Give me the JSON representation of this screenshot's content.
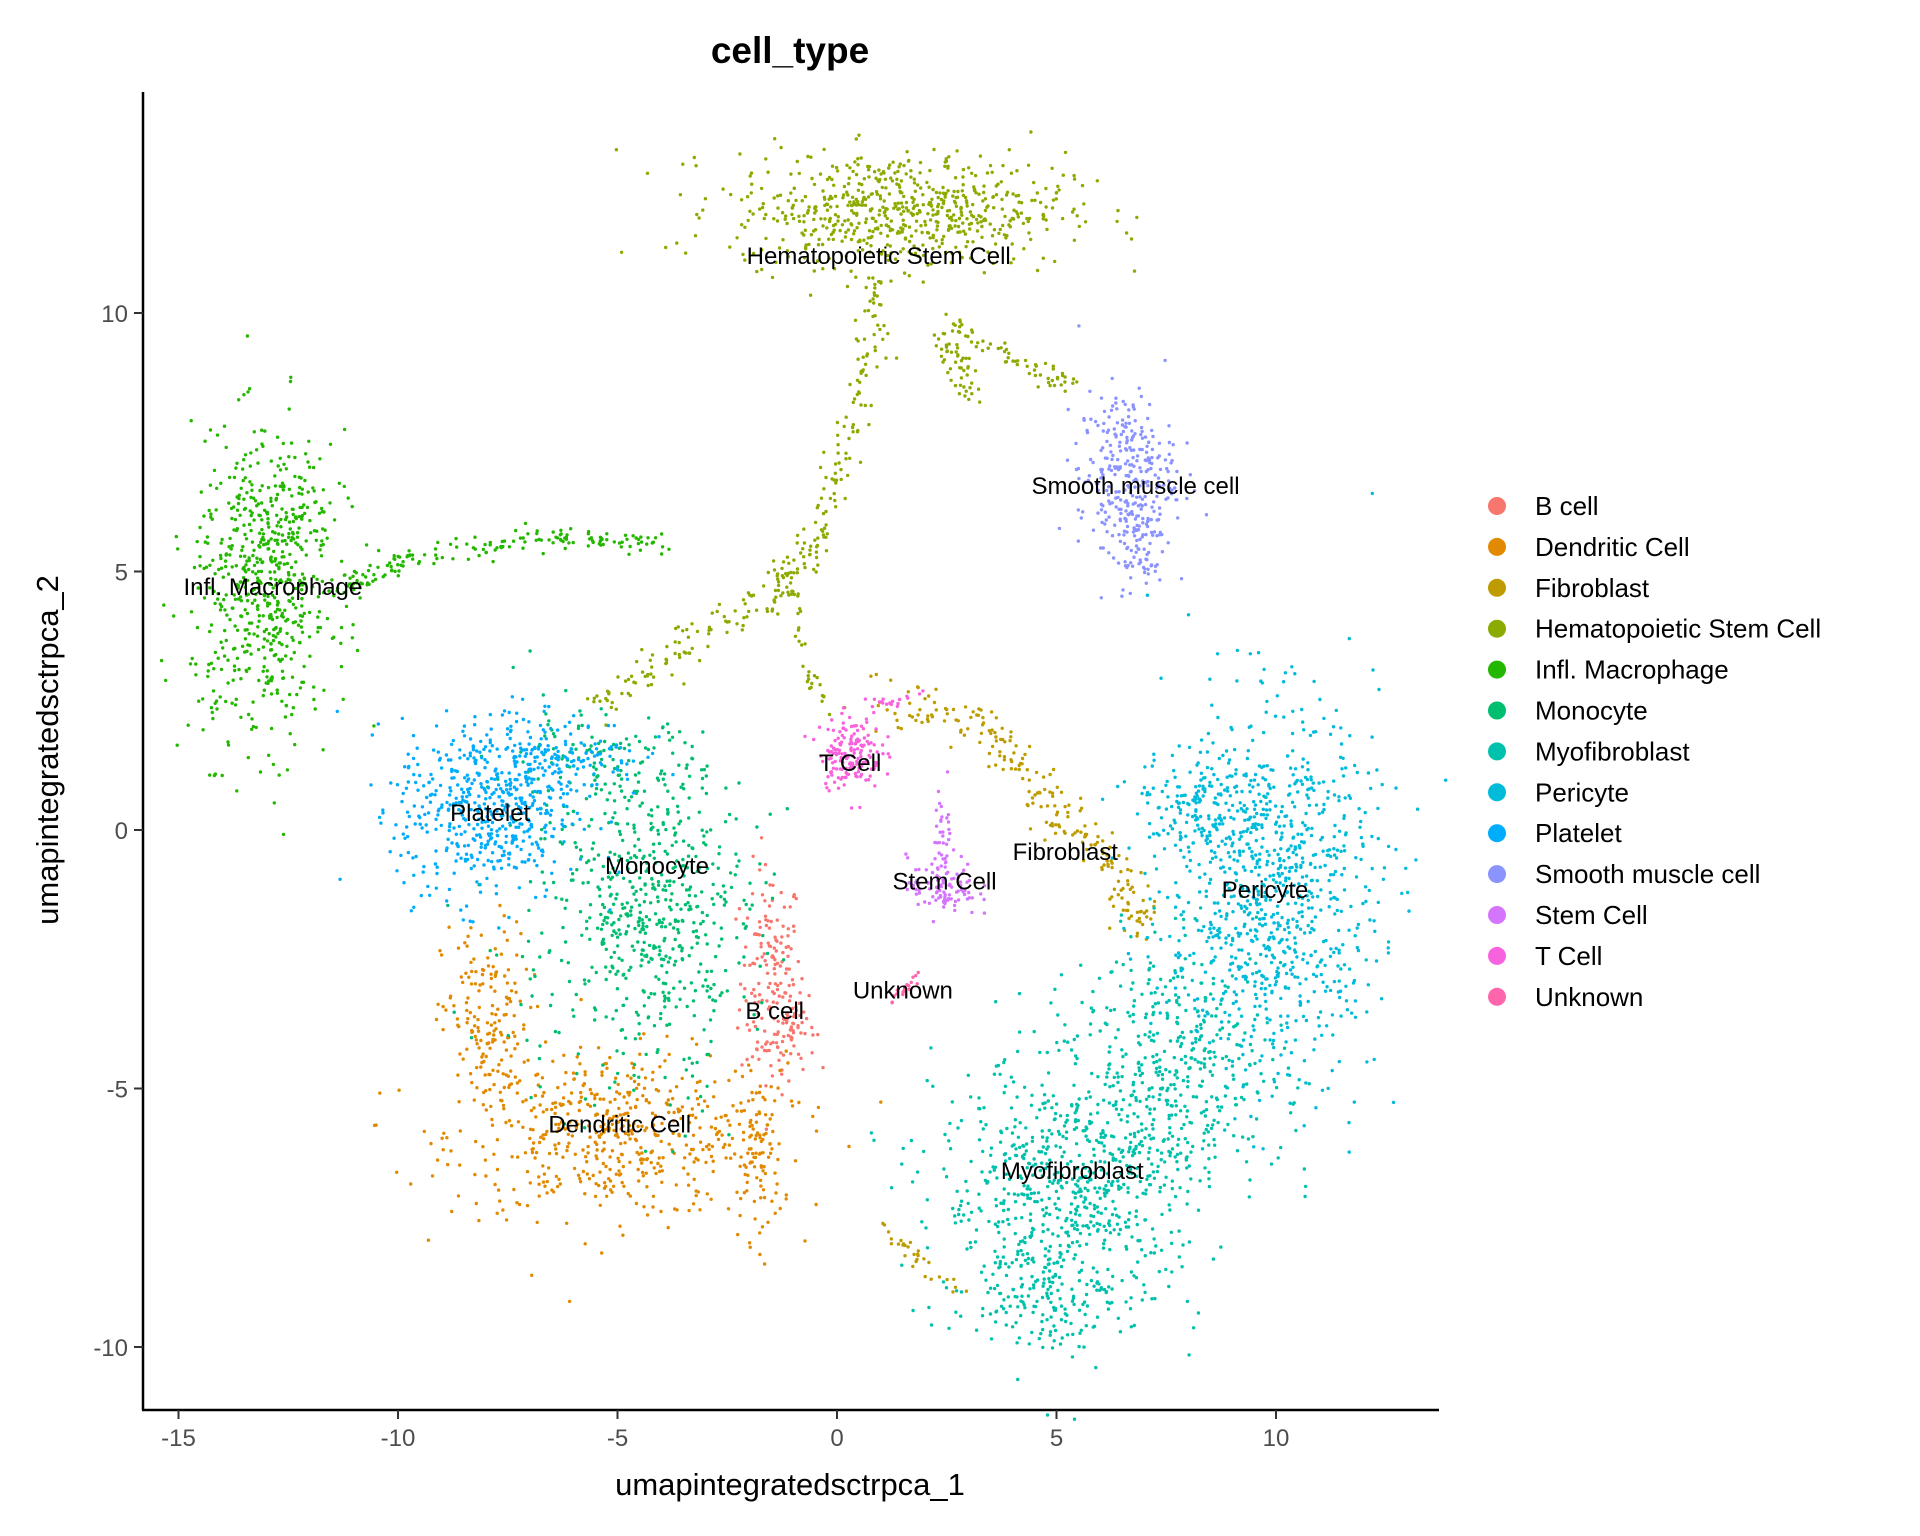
{
  "chart_data": {
    "type": "scatter",
    "title": "cell_type",
    "xlabel": "umapintegratedsctrpca_1",
    "ylabel": "umapintegratedsctrpca_2",
    "xlim": [
      -15.9,
      13.8
    ],
    "ylim": [
      -11.2,
      14.3
    ],
    "xticks": [
      -15,
      -10,
      -5,
      0,
      5,
      10
    ],
    "yticks": [
      -10,
      -5,
      0,
      5,
      10
    ],
    "grid": false,
    "legend_position": "right",
    "clusters": [
      {
        "name": "B cell",
        "color": "#F8766D",
        "label_pos": [
          -1.42,
          -3.5
        ],
        "components": [
          {
            "center": [
              -1.5,
              -2.9
            ],
            "sd": [
              0.35,
              1.1
            ],
            "n": 160
          },
          {
            "center": [
              -1.0,
              -3.8
            ],
            "sd": [
              0.25,
              0.4
            ],
            "n": 50
          }
        ]
      },
      {
        "name": "Dendritic Cell",
        "color": "#E18A00",
        "label_pos": [
          -4.95,
          -5.7
        ],
        "components": [
          {
            "center": [
              -5.0,
              -5.9
            ],
            "sd": [
              1.9,
              0.8
            ],
            "n": 520
          },
          {
            "center": [
              -8.0,
              -3.8
            ],
            "sd": [
              0.5,
              1.0
            ],
            "n": 170
          },
          {
            "center": [
              -1.8,
              -6.3
            ],
            "sd": [
              0.3,
              0.8
            ],
            "n": 90
          }
        ]
      },
      {
        "name": "Fibroblast",
        "color": "#BE9C00",
        "label_pos": [
          5.2,
          -0.43
        ],
        "components": [
          {
            "path": [
              [
                1.0,
                2.6
              ],
              [
                3.3,
                2.0
              ],
              [
                4.2,
                1.2
              ],
              [
                5.0,
                0.3
              ],
              [
                6.3,
                -0.7
              ],
              [
                7.0,
                -2.0
              ]
            ],
            "sd": 0.22,
            "n": 220
          },
          {
            "path": [
              [
                1.0,
                -7.7
              ],
              [
                2.8,
                -9.0
              ]
            ],
            "sd": 0.12,
            "n": 30
          }
        ]
      },
      {
        "name": "Hematopoietic Stem Cell",
        "color": "#8CAB00",
        "label_pos": [
          0.95,
          11.1
        ],
        "components": [
          {
            "center": [
              1.4,
              12.0
            ],
            "sd": [
              1.9,
              0.55
            ],
            "n": 650
          },
          {
            "path": [
              [
                1.0,
                10.6
              ],
              [
                0.4,
                8.0
              ],
              [
                -0.5,
                5.5
              ],
              [
                -1.5,
                4.6
              ],
              [
                -3.5,
                3.6
              ],
              [
                -5.5,
                2.4
              ]
            ],
            "sd": 0.2,
            "n": 260
          },
          {
            "path": [
              [
                2.3,
                10.0
              ],
              [
                4.5,
                8.9
              ],
              [
                5.5,
                8.6
              ]
            ],
            "sd": 0.1,
            "n": 60
          },
          {
            "path": [
              [
                2.4,
                9.5
              ],
              [
                3.2,
                8.3
              ]
            ],
            "sd": 0.15,
            "n": 50
          },
          {
            "path": [
              [
                -1.0,
                4.5
              ],
              [
                -0.7,
                3.0
              ],
              [
                0.0,
                2.3
              ]
            ],
            "sd": 0.1,
            "n": 30
          }
        ]
      },
      {
        "name": "Infl. Macrophage",
        "color": "#24B700",
        "label_pos": [
          -12.85,
          4.7
        ],
        "components": [
          {
            "center": [
              -13.1,
              4.6
            ],
            "sd": [
              0.8,
              1.5
            ],
            "n": 560
          },
          {
            "center": [
              -12.4,
              6.0
            ],
            "sd": [
              0.6,
              0.5
            ],
            "n": 90
          },
          {
            "path": [
              [
                -11.5,
                4.6
              ],
              [
                -9.5,
                5.3
              ],
              [
                -6.5,
                5.7
              ],
              [
                -4.0,
                5.5
              ]
            ],
            "sd": 0.12,
            "n": 170
          }
        ]
      },
      {
        "name": "Monocyte",
        "color": "#00BE70",
        "label_pos": [
          -4.1,
          -0.7
        ],
        "components": [
          {
            "center": [
              -4.0,
              -1.5
            ],
            "sd": [
              1.0,
              1.3
            ],
            "n": 380
          },
          {
            "center": [
              -5.0,
              -2.0
            ],
            "sd": [
              1.6,
              1.8
            ],
            "n": 220
          },
          {
            "center": [
              -5.5,
              1.3
            ],
            "sd": [
              1.2,
              0.5
            ],
            "n": 120
          }
        ]
      },
      {
        "name": "Myofibroblast",
        "color": "#00C1AB",
        "label_pos": [
          5.36,
          -6.6
        ],
        "components": [
          {
            "center": [
              5.3,
              -7.0
            ],
            "sd": [
              1.5,
              1.3
            ],
            "n": 700
          },
          {
            "center": [
              7.8,
              -4.6
            ],
            "sd": [
              1.2,
              1.2
            ],
            "n": 420
          },
          {
            "center": [
              4.6,
              -9.0
            ],
            "sd": [
              0.8,
              0.5
            ],
            "n": 120
          }
        ]
      },
      {
        "name": "Pericyte",
        "color": "#00BBDA",
        "label_pos": [
          9.75,
          -1.16
        ],
        "components": [
          {
            "center": [
              9.9,
              -1.2
            ],
            "sd": [
              1.2,
              1.8
            ],
            "n": 900
          },
          {
            "center": [
              8.4,
              0.5
            ],
            "sd": [
              0.8,
              0.5
            ],
            "n": 150
          }
        ]
      },
      {
        "name": "Platelet",
        "color": "#00ACFC",
        "label_pos": [
          -7.9,
          0.33
        ],
        "components": [
          {
            "center": [
              -8.0,
              0.4
            ],
            "sd": [
              1.0,
              0.9
            ],
            "n": 520
          },
          {
            "center": [
              -6.2,
              1.4
            ],
            "sd": [
              0.9,
              0.4
            ],
            "n": 140
          }
        ]
      },
      {
        "name": "Smooth muscle cell",
        "color": "#8B93FF",
        "label_pos": [
          6.8,
          6.65
        ],
        "components": [
          {
            "center": [
              6.6,
              6.9
            ],
            "sd": [
              0.55,
              0.8
            ],
            "n": 280
          },
          {
            "center": [
              6.8,
              5.5
            ],
            "sd": [
              0.35,
              0.4
            ],
            "n": 70
          }
        ]
      },
      {
        "name": "Stem Cell",
        "color": "#D575FE",
        "label_pos": [
          2.45,
          -1.0
        ],
        "components": [
          {
            "center": [
              2.4,
              -1.1
            ],
            "sd": [
              0.4,
              0.3
            ],
            "n": 100
          },
          {
            "center": [
              2.45,
              0.0
            ],
            "sd": [
              0.1,
              0.5
            ],
            "n": 30
          }
        ]
      },
      {
        "name": "T Cell",
        "color": "#F962DD",
        "label_pos": [
          0.3,
          1.3
        ],
        "components": [
          {
            "center": [
              0.3,
              1.5
            ],
            "sd": [
              0.35,
              0.35
            ],
            "n": 160
          },
          {
            "path": [
              [
                0.7,
                2.4
              ],
              [
                2.0,
                2.6
              ]
            ],
            "sd": 0.08,
            "n": 20
          }
        ]
      },
      {
        "name": "Unknown",
        "color": "#FF65AC",
        "label_pos": [
          1.5,
          -3.1
        ],
        "components": [
          {
            "path": [
              [
                1.2,
                -3.3
              ],
              [
                1.9,
                -2.8
              ]
            ],
            "sd": 0.05,
            "n": 20
          }
        ]
      }
    ]
  }
}
